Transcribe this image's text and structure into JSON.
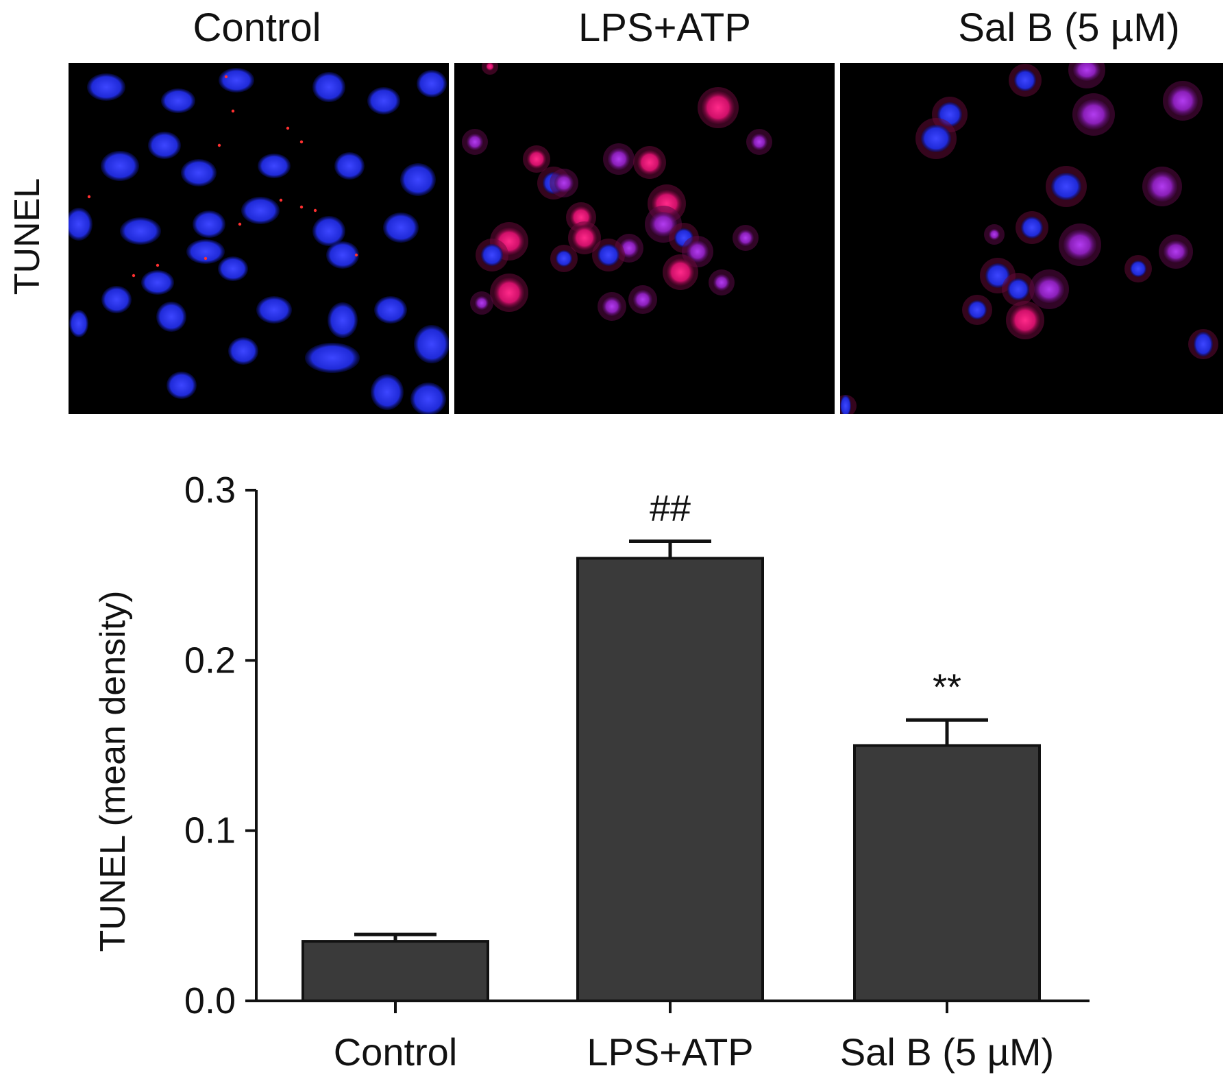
{
  "micrographs": {
    "row_label": "TUNEL",
    "panels": [
      {
        "label": "Control",
        "icon": "blue-nuclei-few-red-specks"
      },
      {
        "label": "LPS+ATP",
        "icon": "many-red-magenta-cells"
      },
      {
        "label": "Sal B (5 µM)",
        "icon": "mixed-blue-and-magenta-cells"
      }
    ],
    "colors": {
      "background": "#000000",
      "nucleus": "#1f2ad8",
      "tunel": "#ff1f6e"
    }
  },
  "chart_data": {
    "type": "bar",
    "categories": [
      "Control",
      "LPS+ATP",
      "Sal B (5 µM)"
    ],
    "values": [
      0.035,
      0.26,
      0.15
    ],
    "errors": [
      0.004,
      0.01,
      0.015
    ],
    "significance": [
      "",
      "##",
      "**"
    ],
    "ylabel": "TUNEL (mean density)",
    "ylim": [
      0,
      0.3
    ],
    "yticks": [
      0.0,
      0.1,
      0.2,
      0.3
    ],
    "ytick_labels": [
      "0.0",
      "0.1",
      "0.2",
      "0.3"
    ],
    "bar_color": "#3a3a3a",
    "grid": false
  }
}
